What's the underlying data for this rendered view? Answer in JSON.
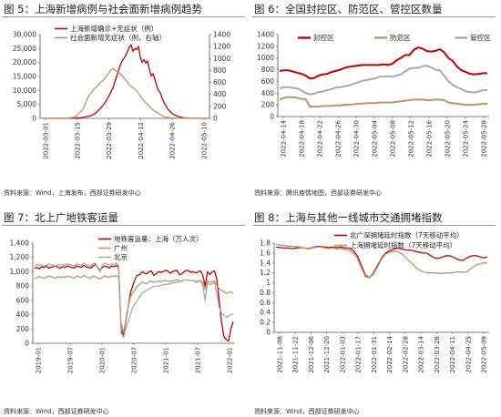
{
  "panels": {
    "p5": {
      "title": "图 5：上海新增病例与社会面新增病例趋势",
      "source": "资料来源：Wind，上海发布，西部证券研发中心"
    },
    "p6": {
      "title": "图 6：全国封控区、防范区、管控区数量",
      "source": "资料来源：腾讯疫情地图，西部证券研发中心"
    },
    "p7": {
      "title": "图 7：北上广地铁客运量",
      "source": "资料来源：Wind，西部证券研发中心"
    },
    "p8": {
      "title": "图 8：上海与其他一线城市交通拥堵指数",
      "source": "资料来源：Wind，西部证券研发中心"
    }
  },
  "colors": {
    "red": "#c00000",
    "tan": "#b79667",
    "gray": "#aaaaaa"
  },
  "chart_data": [
    {
      "id": "p5",
      "type": "line",
      "series": [
        {
          "name": "上海新增确诊+无症状（例）",
          "color": "#c00000",
          "axis": "left",
          "values": [
            0,
            0,
            0,
            0,
            0,
            0,
            0,
            1,
            1,
            2,
            2,
            3,
            5,
            8,
            15,
            25,
            40,
            55,
            80,
            110,
            140,
            200,
            280,
            390,
            520,
            640,
            820,
            1000,
            1300,
            1700,
            2200,
            2800,
            3500,
            4300,
            5000,
            6000,
            7100,
            8300,
            9600,
            11000,
            13000,
            15000,
            17000,
            19000,
            20500,
            21500,
            22500,
            24000,
            25500,
            26300,
            24000,
            25000,
            24600,
            25800,
            22000,
            20000,
            21000,
            19800,
            20500,
            17500,
            15200,
            16000,
            14000,
            11700,
            10000,
            9100,
            7200,
            5700,
            4600,
            3400,
            2700,
            2000,
            1500,
            1100,
            900,
            600,
            450,
            320,
            220,
            150,
            110,
            80,
            60,
            40,
            30,
            20,
            15,
            10,
            8,
            5,
            3,
            2
          ]
        },
        {
          "name": "社会面新增无症状（例，右轴）",
          "color": "#b79667",
          "axis": "right",
          "values": [
            0,
            0,
            0,
            0,
            0,
            0,
            0,
            0,
            0,
            0,
            0,
            1,
            2,
            3,
            5,
            10,
            15,
            20,
            40,
            60,
            100,
            120,
            160,
            240,
            320,
            380,
            420,
            460,
            500,
            520,
            560,
            600,
            620,
            650,
            700,
            730,
            780,
            820,
            830,
            800,
            780,
            760,
            730,
            700,
            660,
            620,
            580,
            540,
            520,
            500,
            470,
            430,
            380,
            340,
            300,
            260,
            240,
            200,
            170,
            140,
            120,
            100,
            80,
            60,
            40,
            30,
            20,
            15,
            10,
            8,
            6,
            5,
            4,
            3,
            2,
            2,
            1,
            1,
            1,
            0,
            0,
            0,
            0,
            0,
            0,
            0,
            0,
            0,
            0
          ]
        }
      ],
      "x_ticks": [
        "2022-03-01",
        "2022-03-15",
        "2022-03-29",
        "2022-04-12",
        "2022-04-26",
        "2022-05-10"
      ],
      "y_left": {
        "lim": [
          0,
          30000
        ],
        "ticks": [
          "0",
          "5,000",
          "10,000",
          "15,000",
          "20,000",
          "25,000",
          "30,000"
        ]
      },
      "y_right": {
        "lim": [
          0,
          1400
        ],
        "ticks": [
          "0",
          "200",
          "400",
          "600",
          "800",
          "1000",
          "1200",
          "1400"
        ]
      },
      "legend": "top-left"
    },
    {
      "id": "p6",
      "type": "line",
      "series": [
        {
          "name": "封控区",
          "color": "#c00000",
          "values": [
            780,
            790,
            790,
            770,
            750,
            730,
            700,
            650,
            660,
            700,
            720,
            730,
            760,
            780,
            800,
            830,
            850,
            860,
            870,
            880,
            880,
            880,
            880,
            880,
            890,
            880,
            900,
            960,
            1000,
            1050,
            1050,
            1140,
            1180,
            1160,
            1120,
            1110,
            1120,
            1150,
            1100,
            1000,
            950,
            850,
            790,
            760,
            730,
            720,
            730,
            740,
            740
          ]
        },
        {
          "name": "防范区",
          "color": "#b79667",
          "values": [
            290,
            320,
            330,
            330,
            320,
            300,
            300,
            170,
            170,
            170,
            180,
            180,
            180,
            190,
            190,
            200,
            200,
            210,
            220,
            220,
            230,
            230,
            230,
            240,
            240,
            240,
            240,
            250,
            260,
            270,
            280,
            290,
            290,
            290,
            280,
            280,
            290,
            290,
            280,
            240,
            230,
            220,
            210,
            200,
            200,
            200,
            210,
            220,
            220
          ]
        },
        {
          "name": "管控区",
          "color": "#aaaaaa",
          "values": [
            480,
            500,
            500,
            490,
            480,
            450,
            400,
            380,
            390,
            420,
            430,
            450,
            470,
            500,
            500,
            520,
            530,
            560,
            580,
            610,
            620,
            640,
            650,
            680,
            680,
            690,
            680,
            700,
            720,
            770,
            820,
            830,
            830,
            860,
            870,
            840,
            800,
            790,
            700,
            600,
            540,
            500,
            470,
            430,
            420,
            410,
            430,
            450,
            450
          ]
        }
      ],
      "x_ticks": [
        "2022-04-14",
        "2022-04-18",
        "2022-04-22",
        "2022-04-26",
        "2022-04-30",
        "2022-05-04",
        "2022-05-08",
        "2022-05-12",
        "2022-05-16",
        "2022-05-20",
        "2022-05-24",
        "2022-05-28"
      ],
      "y_left": {
        "lim": [
          0,
          1400
        ],
        "ticks": [
          "0",
          "200",
          "400",
          "600",
          "800",
          "1000",
          "1200",
          "1400"
        ]
      },
      "legend": "top"
    },
    {
      "id": "p7",
      "type": "line",
      "series": [
        {
          "name": "地铁客运量：上海（万人次）",
          "color": "#c00000",
          "values": [
            1050,
            1060,
            1040,
            1070,
            1060,
            1080,
            1050,
            1060,
            1070,
            1080,
            1060,
            1050,
            1070,
            1060,
            1080,
            1070,
            1060,
            1050,
            1080,
            1070,
            1060,
            1090,
            1070,
            1060,
            1050,
            1080,
            1100,
            1060,
            1020,
            1060,
            1080,
            1070,
            1050,
            1080,
            1070,
            1090,
            1060,
            200,
            100,
            300,
            500,
            700,
            800,
            900,
            950,
            960,
            1000,
            980,
            970,
            1000,
            1010,
            950,
            970,
            1000,
            990,
            1000,
            1020,
            1010,
            980,
            1000,
            1010,
            1020,
            960,
            970,
            1000,
            1020,
            1010,
            990,
            1000,
            980,
            1000,
            1010,
            950,
            800,
            1000,
            960,
            1000,
            1010,
            900,
            600,
            300,
            100,
            50,
            30,
            200,
            300
          ]
        },
        {
          "name": "广州",
          "color": "#b79667",
          "values": [
            900,
            920,
            930,
            920,
            910,
            920,
            940,
            930,
            920,
            910,
            930,
            920,
            930,
            920,
            940,
            930,
            920,
            910,
            940,
            930,
            920,
            950,
            930,
            920,
            910,
            940,
            930,
            910,
            900,
            920,
            940,
            930,
            920,
            940,
            930,
            950,
            920,
            300,
            150,
            300,
            500,
            650,
            700,
            750,
            800,
            820,
            860,
            840,
            830,
            860,
            870,
            850,
            860,
            870,
            860,
            870,
            880,
            870,
            860,
            870,
            880,
            890,
            860,
            870,
            880,
            890,
            880,
            870,
            880,
            860,
            870,
            880,
            850,
            750,
            870,
            850,
            860,
            870,
            810,
            760,
            740,
            720,
            700,
            710,
            720,
            700
          ]
        },
        {
          "name": "北京",
          "color": "#aaaaaa",
          "values": [
            1080,
            1100,
            1090,
            1100,
            1080,
            1090,
            1110,
            1100,
            1090,
            1080,
            1100,
            1090,
            1100,
            1090,
            1110,
            1100,
            1090,
            1080,
            1110,
            1100,
            1090,
            1120,
            1100,
            1090,
            1080,
            1110,
            1120,
            1050,
            1000,
            1100,
            1120,
            1110,
            1090,
            1110,
            1100,
            1120,
            1090,
            150,
            80,
            200,
            300,
            400,
            500,
            550,
            600,
            650,
            700,
            720,
            740,
            760,
            780,
            790,
            800,
            800,
            810,
            820,
            820,
            830,
            830,
            840,
            850,
            850,
            860,
            870,
            880,
            890,
            880,
            870,
            880,
            850,
            860,
            880,
            800,
            600,
            840,
            820,
            830,
            850,
            700,
            500,
            420,
            390,
            360,
            380,
            400,
            410
          ]
        }
      ],
      "x_ticks": [
        "2019-01",
        "2019-07",
        "2020-01",
        "2020-07",
        "2021-01",
        "2021-07",
        "2022-01"
      ],
      "y_left": {
        "lim": [
          0,
          1400
        ],
        "ticks": [
          "0",
          "200",
          "400",
          "600",
          "800",
          "1,000",
          "1,200",
          "1,400"
        ]
      },
      "legend": "top-right"
    },
    {
      "id": "p8",
      "type": "line",
      "series": [
        {
          "name": "北广深拥堵延时指数（7天移动平均）",
          "color": "#c00000",
          "values": [
            1.72,
            1.71,
            1.7,
            1.7,
            1.69,
            1.7,
            1.71,
            1.7,
            1.69,
            1.71,
            1.73,
            1.73,
            1.72,
            1.71,
            1.72,
            1.71,
            1.72,
            1.7,
            1.7,
            1.65,
            1.55,
            1.35,
            1.15,
            1.1,
            1.2,
            1.35,
            1.5,
            1.6,
            1.65,
            1.68,
            1.7,
            1.68,
            1.66,
            1.66,
            1.64,
            1.62,
            1.6,
            1.6,
            1.55,
            1.5,
            1.49,
            1.52,
            1.55,
            1.54,
            1.5,
            1.46,
            1.45,
            1.5,
            1.54,
            1.55,
            1.53,
            1.5,
            1.52
          ]
        },
        {
          "name": "上海拥堵延时指数（7天移动平均）",
          "color": "#b79667",
          "values": [
            1.78,
            1.76,
            1.75,
            1.74,
            1.74,
            1.73,
            1.72,
            1.7,
            1.68,
            1.7,
            1.72,
            1.72,
            1.7,
            1.69,
            1.7,
            1.68,
            1.69,
            1.67,
            1.65,
            1.6,
            1.5,
            1.3,
            1.12,
            1.1,
            1.18,
            1.32,
            1.48,
            1.58,
            1.62,
            1.64,
            1.63,
            1.58,
            1.5,
            1.42,
            1.34,
            1.27,
            1.23,
            1.2,
            1.2,
            1.2,
            1.19,
            1.19,
            1.2,
            1.2,
            1.21,
            1.22,
            1.21,
            1.22,
            1.29,
            1.35,
            1.38,
            1.4,
            1.4
          ]
        }
      ],
      "x_ticks": [
        "2021-11-08",
        "2021-11-22",
        "2021-12-06",
        "2021-12-20",
        "2022-01-03",
        "2022-01-17",
        "2022-01-31",
        "2022-02-14",
        "2022-02-28",
        "2022-03-14",
        "2022-03-28",
        "2022-04-11",
        "2022-04-25",
        "2022-05-09"
      ],
      "y_left": {
        "lim": [
          0,
          1.8
        ],
        "ticks": [
          "0",
          "0.2",
          "0.4",
          "0.6",
          "0.8",
          "1",
          "1.2",
          "1.4",
          "1.6",
          "1.8"
        ]
      },
      "legend": "top-right"
    }
  ]
}
